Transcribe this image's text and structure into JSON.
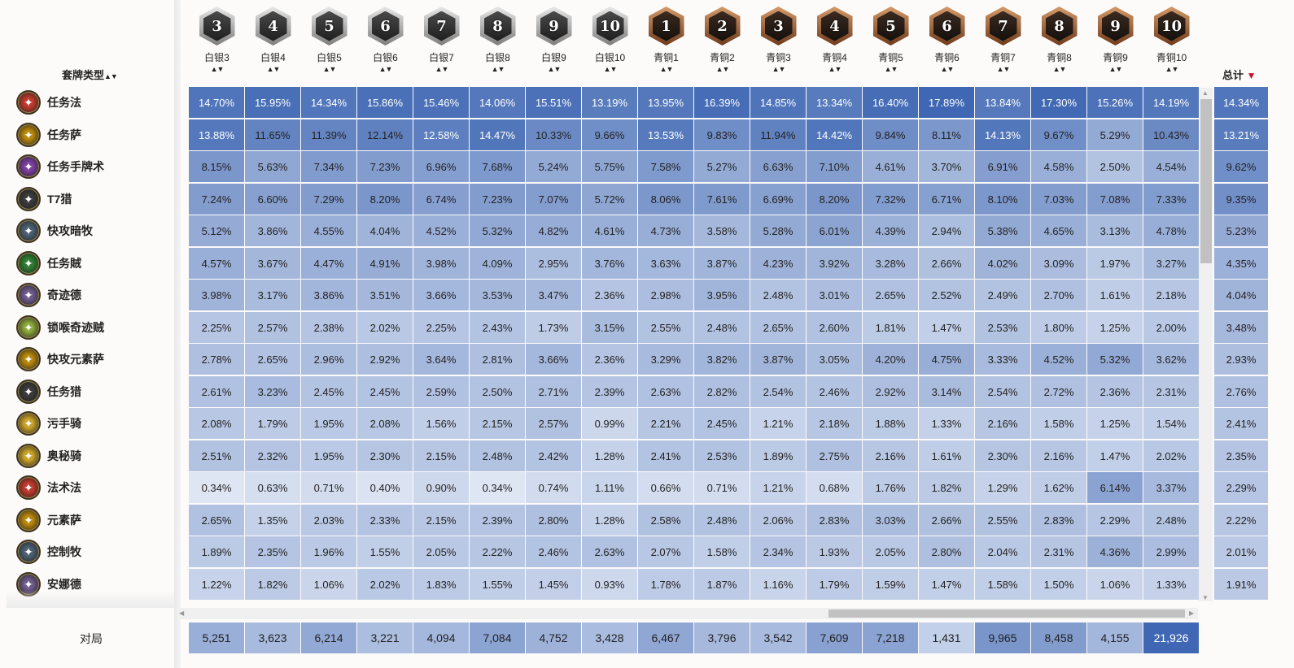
{
  "header": {
    "deck_type_label": "套牌类型",
    "total_label": "总计",
    "games_label": "对局",
    "sort_arrows": "▲▼",
    "total_sort_arrow": "▼"
  },
  "colors": {
    "cell_high": "#3f67b3",
    "cell_low": "#f7f9fd",
    "total_sort_arrow": "#c8102e"
  },
  "columns": [
    {
      "label": "白银3",
      "num": "3",
      "tier": "silver"
    },
    {
      "label": "白银4",
      "num": "4",
      "tier": "silver"
    },
    {
      "label": "白银5",
      "num": "5",
      "tier": "silver"
    },
    {
      "label": "白银6",
      "num": "6",
      "tier": "silver"
    },
    {
      "label": "白银7",
      "num": "7",
      "tier": "silver"
    },
    {
      "label": "白银8",
      "num": "8",
      "tier": "silver"
    },
    {
      "label": "白银9",
      "num": "9",
      "tier": "silver"
    },
    {
      "label": "白银10",
      "num": "10",
      "tier": "silver"
    },
    {
      "label": "青铜1",
      "num": "1",
      "tier": "bronze"
    },
    {
      "label": "青铜2",
      "num": "2",
      "tier": "bronze"
    },
    {
      "label": "青铜3",
      "num": "3",
      "tier": "bronze"
    },
    {
      "label": "青铜4",
      "num": "4",
      "tier": "bronze"
    },
    {
      "label": "青铜5",
      "num": "5",
      "tier": "bronze"
    },
    {
      "label": "青铜6",
      "num": "6",
      "tier": "bronze"
    },
    {
      "label": "青铜7",
      "num": "7",
      "tier": "bronze"
    },
    {
      "label": "青铜8",
      "num": "8",
      "tier": "bronze"
    },
    {
      "label": "青铜9",
      "num": "9",
      "tier": "bronze"
    },
    {
      "label": "青铜10",
      "num": "10",
      "tier": "bronze"
    }
  ],
  "rows": [
    {
      "name": "任务法",
      "icon": "mage-icon",
      "icon_color": "#c0392b",
      "total": "14.34%",
      "values": [
        "14.70%",
        "15.95%",
        "14.34%",
        "15.86%",
        "15.46%",
        "14.06%",
        "15.51%",
        "13.19%",
        "13.95%",
        "16.39%",
        "14.85%",
        "13.34%",
        "16.40%",
        "17.89%",
        "13.84%",
        "17.30%",
        "15.26%",
        "14.19%"
      ]
    },
    {
      "name": "任务萨",
      "icon": "shaman-icon",
      "icon_color": "#b8860b",
      "total": "13.21%",
      "values": [
        "13.88%",
        "11.65%",
        "11.39%",
        "12.14%",
        "12.58%",
        "14.47%",
        "10.33%",
        "9.66%",
        "13.53%",
        "9.83%",
        "11.94%",
        "14.42%",
        "9.84%",
        "8.11%",
        "14.13%",
        "9.67%",
        "5.29%",
        "10.43%"
      ]
    },
    {
      "name": "任务手牌术",
      "icon": "warlock-icon",
      "icon_color": "#7b3f9e",
      "total": "9.62%",
      "values": [
        "8.15%",
        "5.63%",
        "7.34%",
        "7.23%",
        "6.96%",
        "7.68%",
        "5.24%",
        "5.75%",
        "7.58%",
        "5.27%",
        "6.63%",
        "7.10%",
        "4.61%",
        "3.70%",
        "6.91%",
        "4.58%",
        "2.50%",
        "4.54%"
      ]
    },
    {
      "name": "T7猎",
      "icon": "hunter-icon",
      "icon_color": "#3a3a3a",
      "total": "9.35%",
      "values": [
        "7.24%",
        "6.60%",
        "7.29%",
        "8.20%",
        "6.74%",
        "7.23%",
        "7.07%",
        "5.72%",
        "8.06%",
        "7.61%",
        "6.69%",
        "8.20%",
        "7.32%",
        "6.71%",
        "8.10%",
        "7.03%",
        "7.08%",
        "7.33%"
      ]
    },
    {
      "name": "快攻暗牧",
      "icon": "priest-icon",
      "icon_color": "#4b5f70",
      "total": "5.23%",
      "values": [
        "5.12%",
        "3.86%",
        "4.55%",
        "4.04%",
        "4.52%",
        "5.32%",
        "4.82%",
        "4.61%",
        "4.73%",
        "3.58%",
        "5.28%",
        "6.01%",
        "4.39%",
        "2.94%",
        "5.38%",
        "4.65%",
        "3.13%",
        "4.78%"
      ]
    },
    {
      "name": "任务賊",
      "icon": "rogue-icon",
      "icon_color": "#2e7d32",
      "total": "4.35%",
      "values": [
        "4.57%",
        "3.67%",
        "4.47%",
        "4.91%",
        "3.98%",
        "4.09%",
        "2.95%",
        "3.76%",
        "3.63%",
        "3.87%",
        "4.23%",
        "3.92%",
        "3.28%",
        "2.66%",
        "4.02%",
        "3.09%",
        "1.97%",
        "3.27%"
      ]
    },
    {
      "name": "奇迹德",
      "icon": "druid-icon",
      "icon_color": "#6d5a8a",
      "total": "4.04%",
      "values": [
        "3.98%",
        "3.17%",
        "3.86%",
        "3.51%",
        "3.66%",
        "3.53%",
        "3.47%",
        "2.36%",
        "2.98%",
        "3.95%",
        "2.48%",
        "3.01%",
        "2.65%",
        "2.52%",
        "2.49%",
        "2.70%",
        "1.61%",
        "2.18%"
      ]
    },
    {
      "name": "锁喉奇迹贼",
      "icon": "rogue-icon",
      "icon_color": "#8aa83a",
      "total": "3.48%",
      "values": [
        "2.25%",
        "2.57%",
        "2.38%",
        "2.02%",
        "2.25%",
        "2.43%",
        "1.73%",
        "3.15%",
        "2.55%",
        "2.48%",
        "2.65%",
        "2.60%",
        "1.81%",
        "1.47%",
        "2.53%",
        "1.80%",
        "1.25%",
        "2.00%"
      ]
    },
    {
      "name": "快攻元素萨",
      "icon": "shaman-icon",
      "icon_color": "#b8860b",
      "total": "2.93%",
      "values": [
        "2.78%",
        "2.65%",
        "2.96%",
        "2.92%",
        "3.64%",
        "2.81%",
        "3.66%",
        "2.36%",
        "3.29%",
        "3.82%",
        "3.87%",
        "3.05%",
        "4.20%",
        "4.75%",
        "3.33%",
        "4.52%",
        "5.32%",
        "3.62%"
      ]
    },
    {
      "name": "任务猎",
      "icon": "hunter-icon",
      "icon_color": "#3a3a3a",
      "total": "2.76%",
      "values": [
        "2.61%",
        "3.23%",
        "2.45%",
        "2.45%",
        "2.59%",
        "2.50%",
        "2.71%",
        "2.39%",
        "2.63%",
        "2.82%",
        "2.54%",
        "2.46%",
        "2.92%",
        "3.14%",
        "2.54%",
        "2.72%",
        "2.36%",
        "2.31%"
      ]
    },
    {
      "name": "污手骑",
      "icon": "paladin-icon",
      "icon_color": "#c9a227",
      "total": "2.41%",
      "values": [
        "2.08%",
        "1.79%",
        "1.95%",
        "2.08%",
        "1.56%",
        "2.15%",
        "2.57%",
        "0.99%",
        "2.21%",
        "2.45%",
        "1.21%",
        "2.18%",
        "1.88%",
        "1.33%",
        "2.16%",
        "1.58%",
        "1.25%",
        "1.54%"
      ]
    },
    {
      "name": "奥秘骑",
      "icon": "paladin-icon",
      "icon_color": "#c9a227",
      "total": "2.35%",
      "values": [
        "2.51%",
        "2.32%",
        "1.95%",
        "2.30%",
        "2.15%",
        "2.48%",
        "2.42%",
        "1.28%",
        "2.41%",
        "2.53%",
        "1.89%",
        "2.75%",
        "2.16%",
        "1.61%",
        "2.30%",
        "2.16%",
        "1.47%",
        "2.02%"
      ]
    },
    {
      "name": "法术法",
      "icon": "mage-icon",
      "icon_color": "#c0392b",
      "total": "2.29%",
      "values": [
        "0.34%",
        "0.63%",
        "0.71%",
        "0.40%",
        "0.90%",
        "0.34%",
        "0.74%",
        "1.11%",
        "0.66%",
        "0.71%",
        "1.21%",
        "0.68%",
        "1.76%",
        "1.82%",
        "1.29%",
        "1.62%",
        "6.14%",
        "3.37%"
      ]
    },
    {
      "name": "元素萨",
      "icon": "shaman-icon",
      "icon_color": "#b8860b",
      "total": "2.22%",
      "values": [
        "2.65%",
        "1.35%",
        "2.03%",
        "2.33%",
        "2.15%",
        "2.39%",
        "2.80%",
        "1.28%",
        "2.58%",
        "2.48%",
        "2.06%",
        "2.83%",
        "3.03%",
        "2.66%",
        "2.55%",
        "2.83%",
        "2.29%",
        "2.48%"
      ]
    },
    {
      "name": "控制牧",
      "icon": "priest-icon",
      "icon_color": "#4b5f70",
      "total": "2.01%",
      "values": [
        "1.89%",
        "2.35%",
        "1.96%",
        "1.55%",
        "2.05%",
        "2.22%",
        "2.46%",
        "2.63%",
        "2.07%",
        "1.58%",
        "2.34%",
        "1.93%",
        "2.05%",
        "2.80%",
        "2.04%",
        "2.31%",
        "4.36%",
        "2.99%"
      ]
    },
    {
      "name": "安娜德",
      "icon": "druid-icon",
      "icon_color": "#6d5a8a",
      "total": "1.91%",
      "values": [
        "1.22%",
        "1.82%",
        "1.06%",
        "2.02%",
        "1.83%",
        "1.55%",
        "1.45%",
        "0.93%",
        "1.78%",
        "1.87%",
        "1.16%",
        "1.79%",
        "1.59%",
        "1.47%",
        "1.58%",
        "1.50%",
        "1.06%",
        "1.33%"
      ]
    }
  ],
  "games": [
    "5,251",
    "3,623",
    "6,214",
    "3,221",
    "4,094",
    "7,084",
    "4,752",
    "3,428",
    "6,467",
    "3,796",
    "3,542",
    "7,609",
    "7,218",
    "1,431",
    "9,965",
    "8,458",
    "4,155",
    "21,926"
  ],
  "scrollbars": {
    "left_arrow": "◀",
    "right_arrow": "▶",
    "up_arrow": "▲",
    "down_arrow": "▼"
  }
}
